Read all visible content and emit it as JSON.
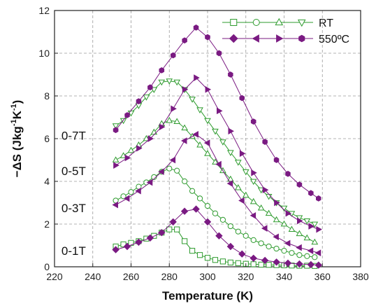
{
  "chart_data": {
    "type": "scatter",
    "title": "",
    "xlabel": "Temperature (K)",
    "ylabel_parts": [
      "−ΔS (Jkg",
      "-1",
      "K",
      "-1",
      ")"
    ],
    "xlim": [
      220,
      380
    ],
    "ylim": [
      0,
      12
    ],
    "xticks": [
      220,
      240,
      260,
      280,
      300,
      320,
      340,
      360,
      380
    ],
    "yticks": [
      0,
      2,
      4,
      6,
      8,
      10,
      12
    ],
    "grid": true,
    "legend_placement": "top-right",
    "colors": {
      "RT": "#2e9b2e",
      "550C": "#7a1a82"
    },
    "legend": [
      {
        "label": "RT",
        "group": "RT",
        "markers": [
          "square",
          "circle",
          "triangle-up",
          "triangle-down"
        ]
      },
      {
        "label": "550ºC",
        "group": "550C",
        "markers": [
          "diamond",
          "triangle-left",
          "triangle-right",
          "hexagon"
        ]
      }
    ],
    "field_labels": [
      {
        "text": "0-7T",
        "x": 228,
        "y": 6.15
      },
      {
        "text": "0-5T",
        "x": 228,
        "y": 4.5
      },
      {
        "text": "0-3T",
        "x": 228,
        "y": 2.75
      },
      {
        "text": "0-1T",
        "x": 228,
        "y": 0.75
      }
    ],
    "series": [
      {
        "name": "RT 0-1T",
        "group": "RT",
        "marker": "square",
        "field": "0-1T",
        "x": [
          252,
          256,
          260,
          264,
          268,
          272,
          276,
          280,
          284,
          288,
          292,
          296,
          300,
          304,
          308,
          312,
          316,
          320,
          324,
          328,
          332,
          336,
          340,
          344,
          348,
          352,
          356
        ],
        "y": [
          0.95,
          1.05,
          1.12,
          1.2,
          1.32,
          1.45,
          1.6,
          1.75,
          1.75,
          1.2,
          0.75,
          0.55,
          0.42,
          0.32,
          0.25,
          0.2,
          0.17,
          0.14,
          0.12,
          0.1,
          0.09,
          0.08,
          0.07,
          0.06,
          0.05,
          0.05,
          0.04
        ]
      },
      {
        "name": "RT 0-3T",
        "group": "RT",
        "marker": "circle",
        "field": "0-3T",
        "x": [
          252,
          256,
          260,
          264,
          268,
          272,
          276,
          280,
          284,
          288,
          292,
          296,
          300,
          304,
          308,
          312,
          316,
          320,
          324,
          328,
          332,
          336,
          340,
          344,
          348,
          352,
          356
        ],
        "y": [
          3.1,
          3.3,
          3.5,
          3.75,
          3.95,
          4.2,
          4.45,
          4.6,
          4.5,
          4.0,
          3.55,
          3.2,
          2.85,
          2.5,
          2.2,
          1.9,
          1.65,
          1.45,
          1.25,
          1.1,
          0.95,
          0.85,
          0.75,
          0.65,
          0.55,
          0.5,
          0.45
        ]
      },
      {
        "name": "RT 0-5T",
        "group": "RT",
        "marker": "triangle-up",
        "field": "0-5T",
        "x": [
          252,
          256,
          260,
          264,
          268,
          272,
          276,
          280,
          284,
          288,
          292,
          296,
          300,
          304,
          308,
          312,
          316,
          320,
          324,
          328,
          332,
          336,
          340,
          344,
          348,
          352,
          356
        ],
        "y": [
          5.0,
          5.2,
          5.45,
          5.7,
          6.0,
          6.3,
          6.7,
          6.85,
          6.8,
          6.5,
          6.1,
          5.7,
          5.3,
          4.9,
          4.5,
          4.1,
          3.7,
          3.35,
          3.05,
          2.75,
          2.5,
          2.2,
          2.0,
          1.75,
          1.55,
          1.35,
          1.15
        ]
      },
      {
        "name": "RT 0-7T",
        "group": "RT",
        "marker": "triangle-down",
        "field": "0-7T",
        "x": [
          252,
          256,
          260,
          264,
          268,
          272,
          276,
          280,
          284,
          288,
          292,
          296,
          300,
          304,
          308,
          312,
          316,
          320,
          324,
          328,
          332,
          336,
          340,
          344,
          348,
          352,
          356
        ],
        "y": [
          6.6,
          6.85,
          7.2,
          7.55,
          7.95,
          8.3,
          8.65,
          8.7,
          8.65,
          8.3,
          7.85,
          7.35,
          6.85,
          6.35,
          5.85,
          5.35,
          4.9,
          4.45,
          4.0,
          3.6,
          3.3,
          3.0,
          2.75,
          2.5,
          2.3,
          2.15,
          2.0
        ]
      },
      {
        "name": "550ºC 0-1T",
        "group": "550C",
        "marker": "diamond",
        "field": "0-1T",
        "x": [
          252,
          258,
          264,
          270,
          276,
          282,
          288,
          294,
          300,
          306,
          312,
          318,
          324,
          330,
          336,
          342,
          348,
          354,
          358
        ],
        "y": [
          0.8,
          0.95,
          1.15,
          1.35,
          1.6,
          2.1,
          2.6,
          2.7,
          2.1,
          1.45,
          0.95,
          0.6,
          0.4,
          0.3,
          0.22,
          0.17,
          0.13,
          0.1,
          0.08
        ]
      },
      {
        "name": "550ºC 0-3T",
        "group": "550C",
        "marker": "triangle-left",
        "field": "0-3T",
        "x": [
          252,
          258,
          264,
          270,
          276,
          282,
          288,
          294,
          300,
          306,
          312,
          318,
          324,
          330,
          336,
          342,
          348,
          354,
          358
        ],
        "y": [
          2.9,
          3.2,
          3.55,
          3.95,
          4.45,
          5.0,
          5.9,
          6.2,
          5.8,
          4.8,
          3.9,
          3.1,
          2.4,
          1.8,
          1.4,
          1.1,
          0.9,
          0.75,
          0.65
        ]
      },
      {
        "name": "550ºC 0-5T",
        "group": "550C",
        "marker": "triangle-right",
        "field": "0-5T",
        "x": [
          252,
          258,
          264,
          270,
          276,
          282,
          288,
          294,
          300,
          306,
          312,
          318,
          324,
          330,
          336,
          342,
          348,
          354,
          358
        ],
        "y": [
          4.75,
          5.1,
          5.55,
          6.0,
          6.55,
          7.4,
          8.3,
          8.85,
          8.3,
          7.3,
          6.35,
          5.3,
          4.4,
          3.6,
          3.0,
          2.5,
          2.15,
          1.9,
          1.75
        ]
      },
      {
        "name": "550ºC 0-7T",
        "group": "550C",
        "marker": "hexagon",
        "field": "0-7T",
        "x": [
          252,
          258,
          264,
          270,
          276,
          282,
          288,
          294,
          300,
          306,
          312,
          318,
          324,
          330,
          336,
          342,
          348,
          354,
          358
        ],
        "y": [
          6.4,
          7.1,
          7.75,
          8.4,
          9.2,
          9.9,
          10.6,
          11.2,
          10.75,
          10.0,
          9.0,
          7.9,
          6.8,
          5.85,
          5.0,
          4.35,
          3.85,
          3.45,
          3.2
        ]
      }
    ]
  }
}
